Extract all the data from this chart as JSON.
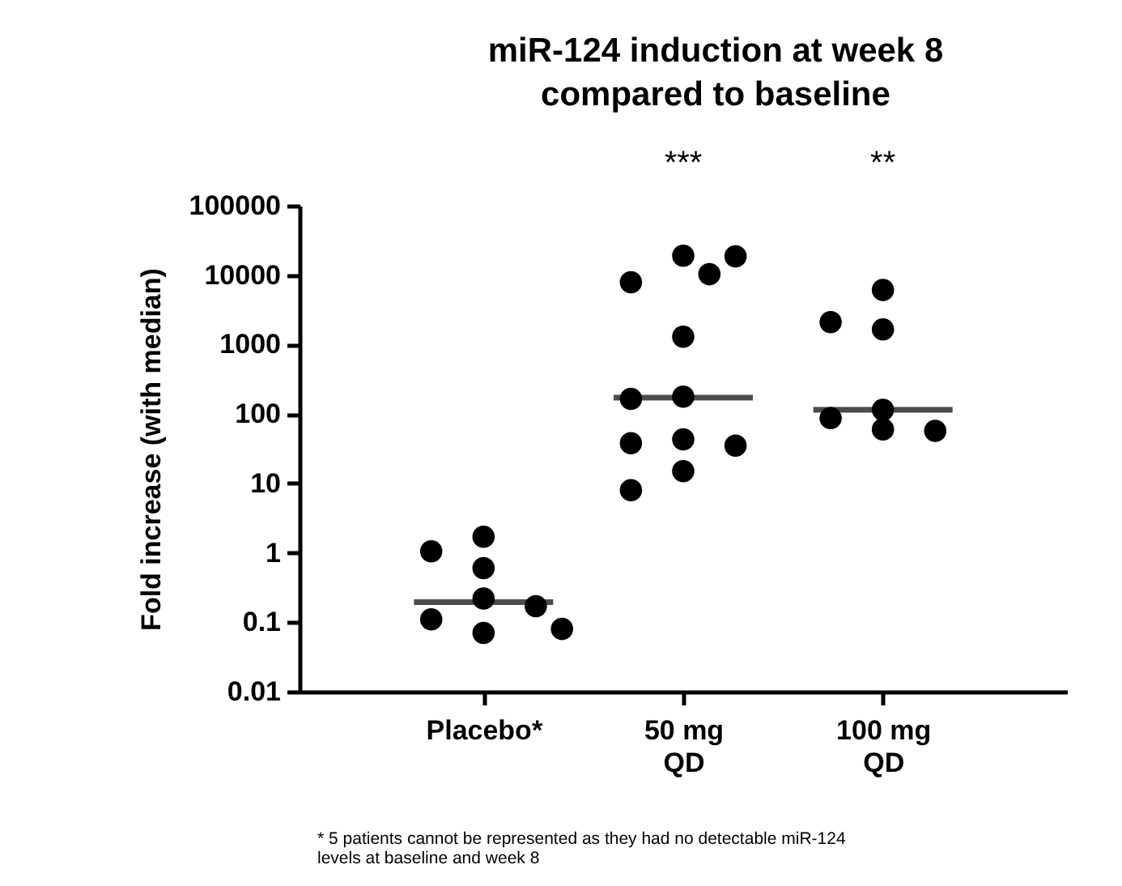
{
  "chart_data": {
    "type": "scatter",
    "title": "miR-124 induction at week 8\ncompared to baseline",
    "ylabel": "Fold increase (with median)",
    "categories": [
      "Placebo*",
      "50 mg QD",
      "100 mg QD"
    ],
    "series": [
      {
        "type": "scatter",
        "color": "#000000",
        "x": [
          "Placebo*",
          "Placebo*",
          "Placebo*",
          "Placebo*",
          "Placebo*",
          "Placebo*",
          "Placebo*",
          "Placebo*",
          "50 mg QD",
          "50 mg QD",
          "50 mg QD",
          "50 mg QD",
          "50 mg QD",
          "50 mg QD",
          "50 mg QD",
          "50 mg QD",
          "50 mg QD",
          "50 mg QD",
          "50 mg QD",
          "50 mg QD",
          "100 mg QD",
          "100 mg QD",
          "100 mg QD",
          "100 mg QD",
          "100 mg QD",
          "100 mg QD",
          "100 mg QD"
        ],
        "values": [
          1.7,
          0.22,
          0.6,
          0.11,
          1.05,
          0.07,
          0.17,
          0.08,
          19000,
          178,
          165,
          1300,
          7900,
          18600,
          10300,
          43,
          38,
          35,
          15,
          8,
          6100,
          115,
          87,
          1650,
          2100,
          57,
          60
        ]
      },
      {
        "type": "box",
        "color": "#000000",
        "boxes": [
          {
            "low": 0.195,
            "q1": 0.195,
            "median": 0.195,
            "q3": 0.195,
            "high": 0.195
          },
          {
            "low": 171.5,
            "q1": 171.5,
            "median": 171.5,
            "q3": 171.5,
            "high": 171.5
          },
          {
            "low": 115,
            "q1": 115,
            "median": 115,
            "q3": 115,
            "high": 115
          }
        ]
      }
    ],
    "ylim": [
      0.01,
      100000
    ],
    "yticks": [
      0.01,
      0.1,
      1,
      10,
      100,
      1000,
      10000,
      100000
    ],
    "log": true,
    "marker": "circle",
    "annotations": [
      "***",
      "**",
      "* 5 patients cannot be represented as they had no detectable miR-124 levels at baseline and week 8"
    ]
  }
}
